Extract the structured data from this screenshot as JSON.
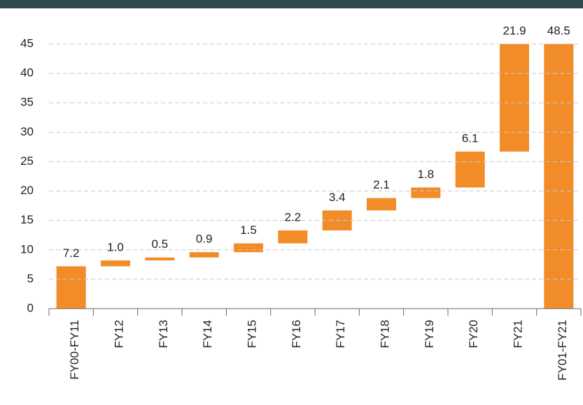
{
  "chart_data": {
    "type": "waterfall",
    "categories": [
      "FY00-FY11",
      "FY12",
      "FY13",
      "FY14",
      "FY15",
      "FY16",
      "FY17",
      "FY18",
      "FY19",
      "FY20",
      "FY21",
      "FY01-FY21"
    ],
    "values": [
      7.2,
      1.0,
      0.5,
      0.9,
      1.5,
      2.2,
      3.4,
      2.1,
      1.8,
      6.1,
      21.9,
      48.5
    ],
    "value_labels": [
      "7.2",
      "1.0",
      "0.5",
      "0.9",
      "1.5",
      "2.2",
      "3.4",
      "2.1",
      "1.8",
      "6.1",
      "21.9",
      "48.5"
    ],
    "is_total": [
      false,
      false,
      false,
      false,
      false,
      false,
      false,
      false,
      false,
      false,
      false,
      true
    ],
    "color": "#f28c28",
    "ylim": [
      0,
      45
    ],
    "yticks": [
      0,
      5,
      10,
      15,
      20,
      25,
      30,
      35,
      40,
      45
    ],
    "grid": true
  }
}
